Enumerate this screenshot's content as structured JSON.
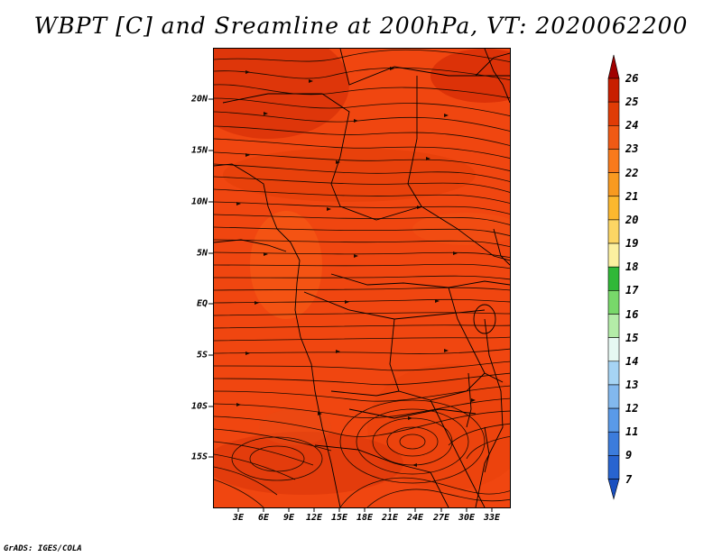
{
  "title": "WBPT [C] and Sreamline at 200hPa, VT: 2020062200",
  "credit": "GrADS: IGES/COLA",
  "map": {
    "variable": "Wet-bulb potential temperature",
    "units": "C",
    "level": "200hPa",
    "valid_time": "2020062200",
    "lat_labels": [
      "20N",
      "15N",
      "10N",
      "5N",
      "EQ",
      "5S",
      "10S",
      "15S"
    ],
    "lat_values": [
      20,
      15,
      10,
      5,
      0,
      -5,
      -10,
      -15
    ],
    "lon_labels": [
      "3E",
      "6E",
      "9E",
      "12E",
      "15E",
      "18E",
      "21E",
      "24E",
      "27E",
      "30E",
      "33E"
    ],
    "lon_values": [
      3,
      6,
      9,
      12,
      15,
      18,
      21,
      24,
      27,
      30,
      33
    ],
    "lat_range": [
      -20,
      24.5
    ],
    "lon_range": [
      0,
      35
    ]
  },
  "colorbar": {
    "labels": [
      "26",
      "25",
      "24",
      "23",
      "22",
      "21",
      "20",
      "19",
      "18",
      "17",
      "16",
      "15",
      "14",
      "13",
      "12",
      "11",
      "9",
      "7"
    ],
    "colors": [
      "#a00000",
      "#c81e00",
      "#e03c06",
      "#f05a14",
      "#f87a1c",
      "#f89a20",
      "#fcb82e",
      "#fcd664",
      "#fcf0a0",
      "#30b838",
      "#78d86a",
      "#b4eca8",
      "#e6f8f2",
      "#a6d4f4",
      "#82b8ee",
      "#5a9ae8",
      "#3c7cdc",
      "#2864d0",
      "#1a50c0"
    ],
    "top_arrow": "#a00000",
    "bottom_arrow": "#1a50c0"
  }
}
